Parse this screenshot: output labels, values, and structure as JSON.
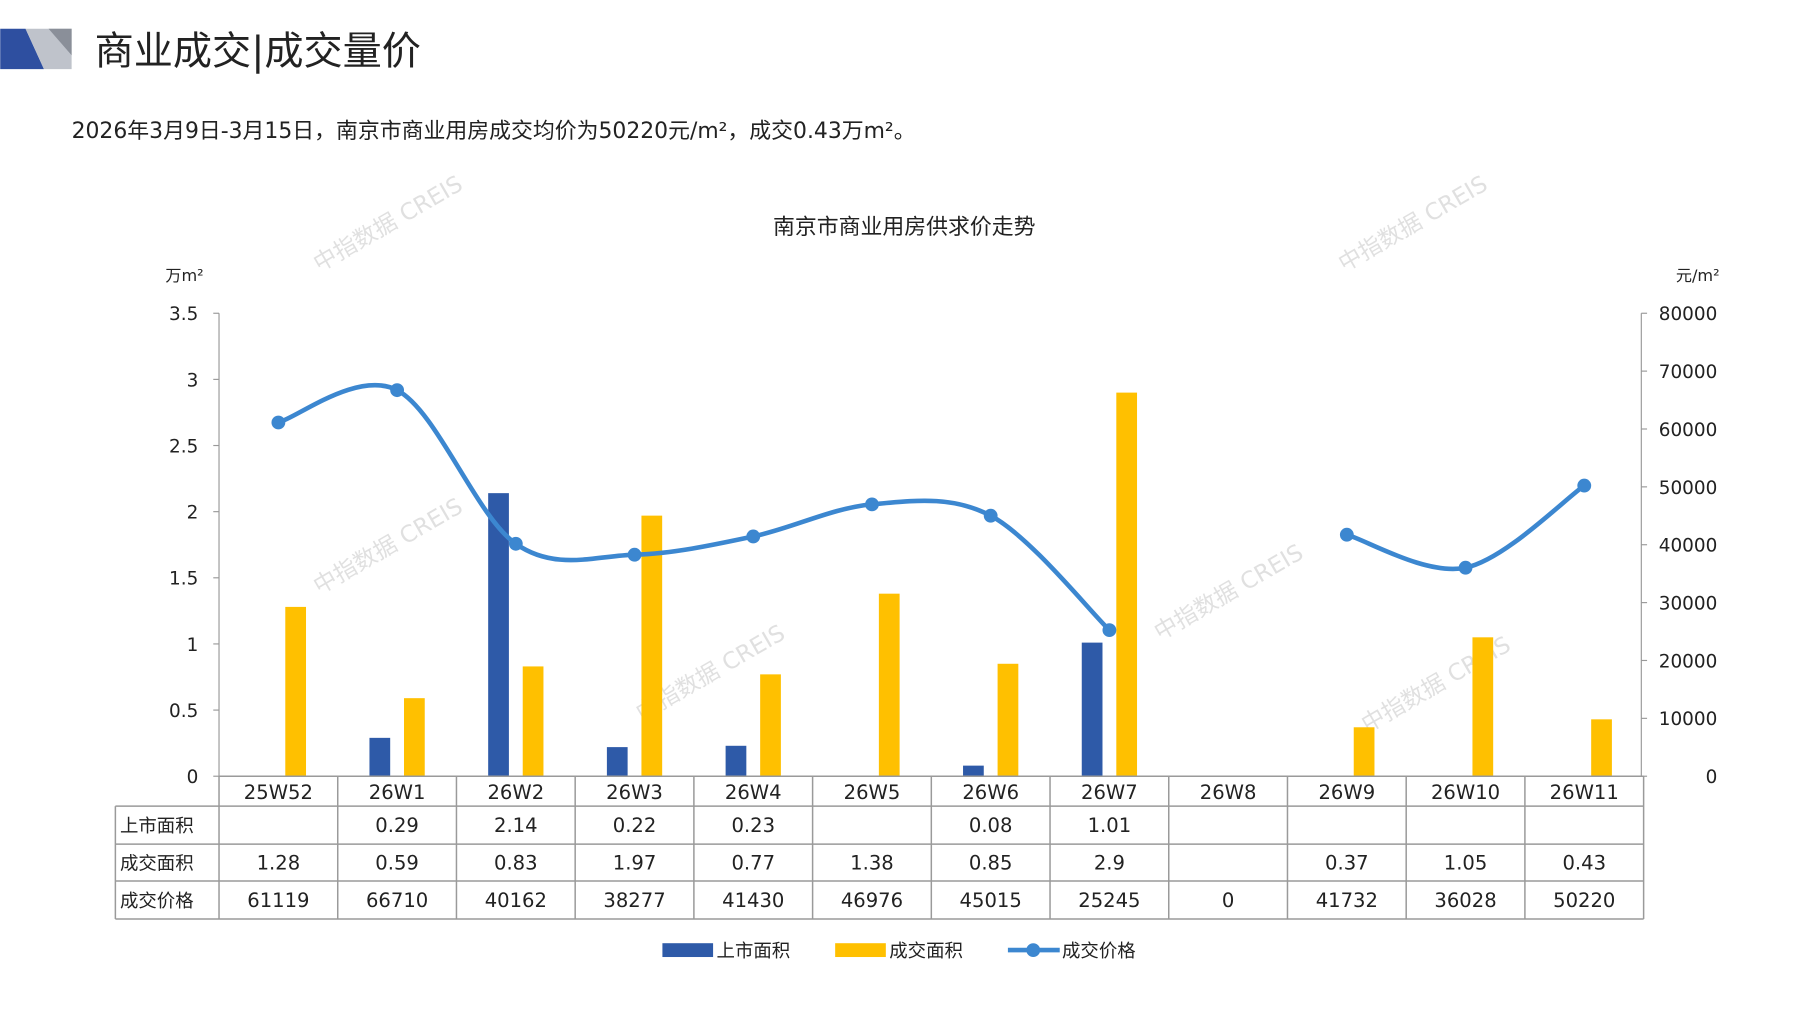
{
  "header": {
    "title": "商业成交|成交量价",
    "subtitle": "2026年3月9日-3月15日，南京市商业用房成交均价为50220元/m²，成交0.43万m²。"
  },
  "watermark": "中指数据 CREIS",
  "colors": {
    "supply": "#2E5AA8",
    "deal": "#FFC000",
    "price": "#3C87D0",
    "logo_blue": "#2E4FA0",
    "logo_gray": "#BFC3CB"
  },
  "chart_data": {
    "type": "bar+line",
    "title": "南京市商业用房供求价走势",
    "ylabel_left": "万m²",
    "ylabel_right": "元/m²",
    "ylim_left": [
      0,
      3.5
    ],
    "yticks_left": [
      "0",
      "0.5",
      "1",
      "1.5",
      "2",
      "2.5",
      "3",
      "3.5"
    ],
    "ylim_right": [
      0,
      80000
    ],
    "yticks_right": [
      "0",
      "10000",
      "20000",
      "30000",
      "40000",
      "50000",
      "60000",
      "70000",
      "80000"
    ],
    "categories": [
      "25W52",
      "26W1",
      "26W2",
      "26W3",
      "26W4",
      "26W5",
      "26W6",
      "26W7",
      "26W8",
      "26W9",
      "26W10",
      "26W11"
    ],
    "series": [
      {
        "name": "上市面积",
        "type": "bar",
        "axis": "left",
        "values": [
          null,
          0.29,
          2.14,
          0.22,
          0.23,
          null,
          0.08,
          1.01,
          null,
          null,
          null,
          null
        ]
      },
      {
        "name": "成交面积",
        "type": "bar",
        "axis": "left",
        "values": [
          1.28,
          0.59,
          0.83,
          1.97,
          0.77,
          1.38,
          0.85,
          2.9,
          null,
          0.37,
          1.05,
          0.43
        ]
      },
      {
        "name": "成交价格",
        "type": "line",
        "axis": "right",
        "values": [
          61119,
          66710,
          40162,
          38277,
          41430,
          46976,
          45015,
          25245,
          0,
          41732,
          36028,
          50220
        ]
      }
    ],
    "table_labels": [
      "上市面积",
      "成交面积",
      "成交价格"
    ],
    "legend_position": "bottom"
  }
}
